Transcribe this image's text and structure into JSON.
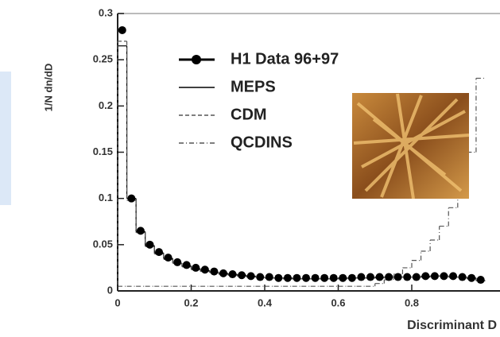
{
  "chart_data": {
    "type": "histogram-steps",
    "y_label": "1/N dn/dD",
    "x_label": "Discriminant D",
    "x": [
      0.0125,
      0.0375,
      0.0625,
      0.0875,
      0.1125,
      0.1375,
      0.1625,
      0.1875,
      0.2125,
      0.2375,
      0.2625,
      0.2875,
      0.3125,
      0.3375,
      0.3625,
      0.3875,
      0.4125,
      0.4375,
      0.4625,
      0.4875,
      0.5125,
      0.5375,
      0.5625,
      0.5875,
      0.6125,
      0.6375,
      0.6625,
      0.6875,
      0.7125,
      0.7375,
      0.7625,
      0.7875,
      0.8125,
      0.8375,
      0.8625,
      0.8875,
      0.9125,
      0.9375,
      0.9625,
      0.9875
    ],
    "series": [
      {
        "name": "H1 Data 96+97",
        "color": "#000000",
        "style": "points",
        "values": [
          0.282,
          0.1,
          0.065,
          0.05,
          0.042,
          0.036,
          0.031,
          0.028,
          0.025,
          0.023,
          0.021,
          0.019,
          0.018,
          0.017,
          0.016,
          0.015,
          0.015,
          0.014,
          0.014,
          0.014,
          0.014,
          0.014,
          0.014,
          0.014,
          0.014,
          0.014,
          0.015,
          0.015,
          0.015,
          0.015,
          0.015,
          0.015,
          0.015,
          0.016,
          0.016,
          0.016,
          0.016,
          0.015,
          0.014,
          0.012
        ]
      },
      {
        "name": "MEPS",
        "color": "#000000",
        "style": "solid",
        "values": [
          0.265,
          0.1,
          0.064,
          0.049,
          0.041,
          0.035,
          0.03,
          0.027,
          0.024,
          0.022,
          0.02,
          0.019,
          0.018,
          0.017,
          0.016,
          0.015,
          0.014,
          0.014,
          0.014,
          0.013,
          0.013,
          0.013,
          0.013,
          0.013,
          0.014,
          0.014,
          0.014,
          0.014,
          0.015,
          0.015,
          0.015,
          0.015,
          0.015,
          0.015,
          0.016,
          0.016,
          0.015,
          0.015,
          0.014,
          0.011
        ]
      },
      {
        "name": "CDM",
        "color": "#555555",
        "style": "dashed",
        "values": [
          0.27,
          0.098,
          0.063,
          0.048,
          0.04,
          0.034,
          0.03,
          0.026,
          0.023,
          0.021,
          0.02,
          0.018,
          0.017,
          0.016,
          0.015,
          0.015,
          0.014,
          0.014,
          0.013,
          0.013,
          0.013,
          0.013,
          0.013,
          0.013,
          0.013,
          0.014,
          0.014,
          0.014,
          0.014,
          0.015,
          0.015,
          0.015,
          0.015,
          0.016,
          0.016,
          0.016,
          0.015,
          0.015,
          0.013,
          0.011
        ]
      },
      {
        "name": "QCDINS",
        "color": "#555555",
        "style": "dashdot",
        "values": [
          0.005,
          0.005,
          0.005,
          0.005,
          0.005,
          0.005,
          0.005,
          0.005,
          0.005,
          0.005,
          0.005,
          0.005,
          0.005,
          0.005,
          0.005,
          0.005,
          0.005,
          0.005,
          0.005,
          0.005,
          0.005,
          0.005,
          0.005,
          0.005,
          0.005,
          0.005,
          0.005,
          0.005,
          0.008,
          0.012,
          0.018,
          0.025,
          0.033,
          0.043,
          0.055,
          0.07,
          0.09,
          0.115,
          0.15,
          0.23
        ]
      }
    ],
    "xlim": [
      0,
      1.04
    ],
    "xticks": [
      0,
      0.2,
      0.4,
      0.6,
      0.8
    ],
    "ylim": [
      0,
      0.3
    ],
    "yticks": [
      0,
      0.05,
      0.1,
      0.15,
      0.2,
      0.25,
      0.3
    ],
    "bin_width": 0.025,
    "legend": "upper left"
  }
}
